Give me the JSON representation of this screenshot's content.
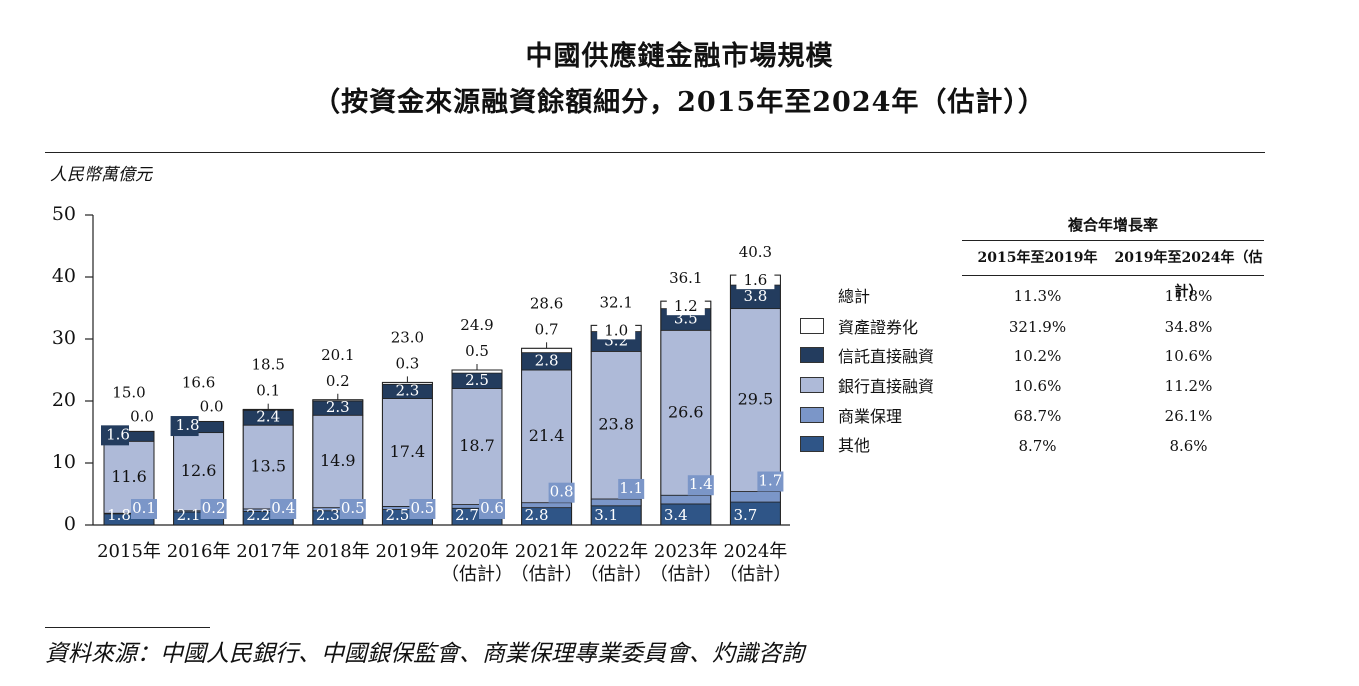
{
  "title": {
    "line1": "中國供應鏈金融市場規模",
    "line2": "（按資金來源融資餘額細分，2015年至2024年（估計））"
  },
  "unit_label": "人民幣萬億元",
  "source": "資料來源：中國人民銀行、中國銀保監會、商業保理專業委員會、灼識咨詢",
  "colors": {
    "other": "#2f5587",
    "factoring": "#7b96c8",
    "bank": "#aebad8",
    "trust": "#233c5e",
    "abs": "#ffffff"
  },
  "chart_data": {
    "type": "bar",
    "stacked": true,
    "ylim": [
      0,
      50
    ],
    "yticks": [
      "0",
      "10",
      "20",
      "30",
      "40",
      "50"
    ],
    "categories": [
      [
        "2015年",
        ""
      ],
      [
        "2016年",
        ""
      ],
      [
        "2017年",
        ""
      ],
      [
        "2018年",
        ""
      ],
      [
        "2019年",
        ""
      ],
      [
        "2020年",
        "（估計）"
      ],
      [
        "2021年",
        "（估計）"
      ],
      [
        "2022年",
        "（估計）"
      ],
      [
        "2023年",
        "（估計）"
      ],
      [
        "2024年",
        "（估計）"
      ]
    ],
    "series": [
      {
        "key": "other",
        "name": "其他",
        "values": [
          1.8,
          2.1,
          2.2,
          2.3,
          2.5,
          2.7,
          2.8,
          3.1,
          3.4,
          3.7
        ],
        "labels": [
          "1.8",
          "2.1",
          "2.2",
          "2.3",
          "2.5",
          "2.7",
          "2.8",
          "3.1",
          "3.4",
          "3.7"
        ]
      },
      {
        "key": "factoring",
        "name": "商業保理",
        "values": [
          0.1,
          0.2,
          0.4,
          0.5,
          0.5,
          0.6,
          0.8,
          1.1,
          1.4,
          1.7
        ],
        "labels": [
          "0.1",
          "0.2",
          "0.4",
          "0.5",
          "0.5",
          "0.6",
          "0.8",
          "1.1",
          "1.4",
          "1.7"
        ]
      },
      {
        "key": "bank",
        "name": "銀行直接融資",
        "values": [
          11.6,
          12.6,
          13.5,
          14.9,
          17.4,
          18.7,
          21.4,
          23.8,
          26.6,
          29.5
        ],
        "labels": [
          "11.6",
          "12.6",
          "13.5",
          "14.9",
          "17.4",
          "18.7",
          "21.4",
          "23.8",
          "26.6",
          "29.5"
        ]
      },
      {
        "key": "trust",
        "name": "信託直接融資",
        "values": [
          1.6,
          1.8,
          2.4,
          2.3,
          2.3,
          2.5,
          2.8,
          3.2,
          3.5,
          3.8
        ],
        "labels": [
          "1.6",
          "1.8",
          "2.4",
          "2.3",
          "2.3",
          "2.5",
          "2.8",
          "3.2",
          "3.5",
          "3.8"
        ]
      },
      {
        "key": "abs",
        "name": "資產證券化",
        "values": [
          0.0,
          0.0,
          0.1,
          0.2,
          0.3,
          0.5,
          0.7,
          1.0,
          1.2,
          1.6
        ],
        "labels": [
          "0.0",
          "0.0",
          "0.1",
          "0.2",
          "0.3",
          "0.5",
          "0.7",
          "1.0",
          "1.2",
          "1.6"
        ]
      }
    ],
    "totals": [
      "15.0",
      "16.6",
      "18.5",
      "20.1",
      "23.0",
      "24.9",
      "28.6",
      "32.1",
      "36.1",
      "40.3"
    ]
  },
  "legend": [
    {
      "label": "資產證券化",
      "color": "#ffffff"
    },
    {
      "label": "信託直接融資",
      "color": "#233c5e"
    },
    {
      "label": "銀行直接融資",
      "color": "#aebad8"
    },
    {
      "label": "商業保理",
      "color": "#7b96c8"
    },
    {
      "label": "其他",
      "color": "#2f5587"
    }
  ],
  "cagr_table": {
    "header": "複合年增長率",
    "col1": "2015年至2019年",
    "col2": "2019年至2024年（估計）",
    "rows": [
      {
        "label": "總計",
        "a": "11.3%",
        "b": "11.8%"
      },
      {
        "label": "資產證券化",
        "a": "321.9%",
        "b": "34.8%"
      },
      {
        "label": "信託直接融資",
        "a": "10.2%",
        "b": "10.6%"
      },
      {
        "label": "銀行直接融資",
        "a": "10.6%",
        "b": "11.2%"
      },
      {
        "label": "商業保理",
        "a": "68.7%",
        "b": "26.1%"
      },
      {
        "label": "其他",
        "a": "8.7%",
        "b": "8.6%"
      }
    ]
  }
}
